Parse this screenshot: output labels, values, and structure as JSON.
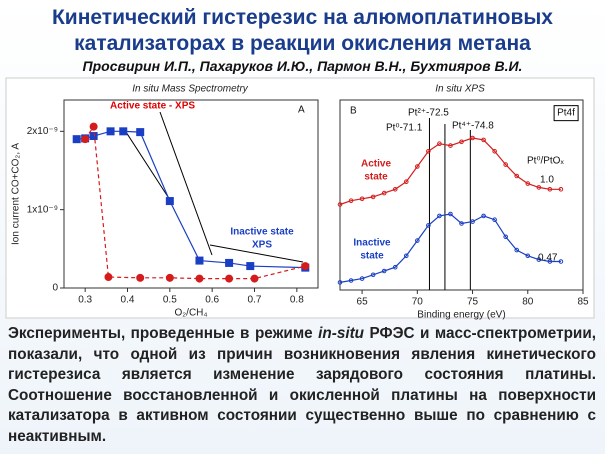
{
  "title": [
    "Кинетический гистерезис на алюмоплатиновых",
    "катализаторах в реакции окисления метана"
  ],
  "authors": "Просвирин И.П., Пахаруков И.Ю., Пармон В.Н., Бухтияров В.И.",
  "paragraph": [
    "Эксперименты, проведенные в режиме ",
    "in-situ",
    " РФЭС и масс-спектрометрии, показали, что одной из причин возникновения явления кинетического гистерезиса является изменение зарядового состояния платины. Соотношение восстановленной и окисленной платины на поверхности катализатора в активном состоянии существенно выше по сравнению с неактивным."
  ],
  "chart_data": [
    {
      "type": "scatter",
      "title": "In situ Mass Spectrometry",
      "xlabel": "O₂/CH₄",
      "ylabel": "Ion current CO+CO₂, A",
      "xlim": [
        0.25,
        0.85
      ],
      "xticks": [
        0.3,
        0.4,
        0.5,
        0.6,
        0.7,
        0.8
      ],
      "ylim": [
        0,
        2.4e-09
      ],
      "yticks": [
        0,
        {
          "value": 1e-09,
          "label": "1x10⁻⁹"
        },
        {
          "value": 2e-09,
          "label": "2x10⁻⁹"
        }
      ],
      "series": [
        {
          "color": "#1a3fc4",
          "marker": "square",
          "line_style": "solid",
          "x": [
            0.28,
            0.3,
            0.32,
            0.36,
            0.39,
            0.43,
            0.5,
            0.57,
            0.64,
            0.69,
            0.82
          ],
          "values": [
            1.9e-09,
            1.91e-09,
            1.94e-09,
            2e-09,
            2e-09,
            1.99e-09,
            1.11e-09,
            3.5e-10,
            3.2e-10,
            2.8e-10,
            2.6e-10
          ]
        },
        {
          "color": "#d41c1c",
          "marker": "circle",
          "line_style": "dashed",
          "x": [
            0.3,
            0.32,
            0.355,
            0.43,
            0.5,
            0.57,
            0.64,
            0.7,
            0.82
          ],
          "values": [
            1.9e-09,
            2.06e-09,
            1.4e-10,
            1.3e-10,
            1.3e-10,
            1.2e-10,
            1.2e-10,
            1.2e-10,
            2.8e-10
          ]
        }
      ],
      "annotations": [
        {
          "text": "A"
        },
        {
          "text": "Active state - XPS",
          "color": "#e00000"
        },
        {
          "text": "Inactive state",
          "color": "#1a3fc4"
        },
        {
          "text": "XPS",
          "color": "#1a3fc4"
        }
      ]
    },
    {
      "type": "line",
      "title": "In situ XPS",
      "xlabel": "Binding energy (eV)",
      "xlim": [
        63,
        85
      ],
      "xticks": [
        65,
        70,
        75,
        80,
        85
      ],
      "ylim": [
        0,
        100
      ],
      "vlines": [
        71.1,
        72.5,
        74.8
      ],
      "series": [
        {
          "color": "#d41c1c",
          "marker": "circle",
          "line_style": "solid",
          "x": [
            63,
            64,
            65,
            66,
            67,
            68,
            69,
            70,
            71,
            72,
            73,
            74,
            75,
            76,
            77,
            78,
            79,
            80,
            81,
            82,
            83
          ],
          "values": [
            45,
            47,
            48,
            49,
            51,
            53,
            57,
            65,
            73,
            77,
            76,
            78,
            80,
            79,
            73,
            66,
            60,
            56,
            54,
            53,
            53
          ]
        },
        {
          "color": "#1a3fc4",
          "marker": "circle",
          "line_style": "solid",
          "x": [
            63,
            64,
            65,
            66,
            67,
            68,
            69,
            70,
            71,
            72,
            73,
            74,
            75,
            76,
            77,
            78,
            79,
            80,
            81,
            82,
            83
          ],
          "values": [
            4,
            5,
            6,
            8,
            10,
            12,
            18,
            26,
            34,
            39,
            40,
            35,
            36,
            39,
            37,
            28,
            21,
            18,
            16,
            15,
            15
          ]
        }
      ],
      "annotations": [
        {
          "text": "B"
        },
        {
          "text": "Pt4f"
        },
        {
          "text": "Pt²⁺-72.5"
        },
        {
          "text": "Pt⁰-71.1"
        },
        {
          "text": "Pt⁴⁺-74.8"
        },
        {
          "text": "Pt⁰/PtOₓ"
        },
        {
          "text": "1.0"
        },
        {
          "text": "0.47"
        },
        {
          "text": "Active",
          "color": "#d41c1c"
        },
        {
          "text": "state",
          "color": "#d41c1c"
        },
        {
          "text": "Inactive",
          "color": "#1a3fc4"
        },
        {
          "text": "state",
          "color": "#1a3fc4"
        }
      ]
    }
  ]
}
